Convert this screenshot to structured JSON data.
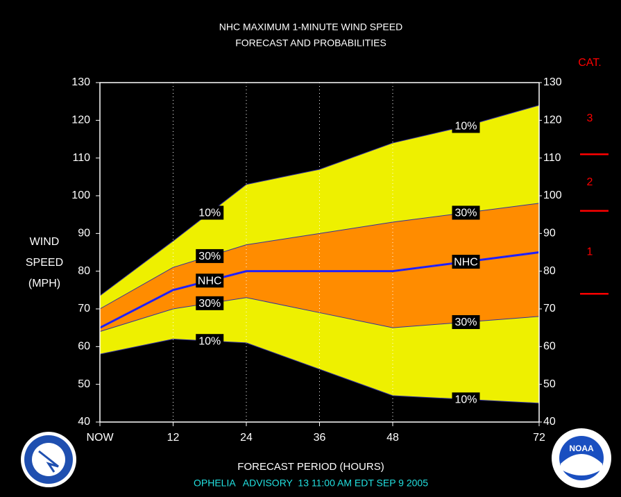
{
  "chart_data": {
    "type": "band",
    "title": [
      "NHC MAXIMUM 1-MINUTE WIND SPEED",
      "FORECAST AND PROBABILITIES"
    ],
    "y_label": [
      "WIND",
      "SPEED",
      "(MPH)"
    ],
    "x_label": "FORECAST PERIOD (HOURS)",
    "footer": "OPHELIA   ADVISORY  13 11:00 AM EDT SEP 9 2005",
    "x": [
      0,
      12,
      24,
      36,
      48,
      60,
      72
    ],
    "xlim": [
      0,
      72
    ],
    "xticks": [
      {
        "value": 0,
        "label": "NOW"
      },
      12,
      24,
      36,
      48,
      72
    ],
    "ylim": [
      40,
      130
    ],
    "yticks": [
      40,
      50,
      60,
      70,
      80,
      90,
      100,
      110,
      120,
      130
    ],
    "y2lim": [
      40,
      130
    ],
    "y2ticks": [
      40,
      50,
      60,
      70,
      80,
      90,
      100,
      110,
      120,
      130
    ],
    "grid": true,
    "series": [
      {
        "name": "10%",
        "color": "#eef000",
        "values": [
          73.5,
          88,
          103,
          107,
          114,
          118.5,
          124
        ]
      },
      {
        "name": "30%",
        "color": "#ff8c00",
        "values": [
          70,
          81,
          87,
          90,
          93,
          95.5,
          98
        ]
      },
      {
        "name": "NHC",
        "color": "#2020ff",
        "values": [
          65,
          75,
          80,
          80,
          80,
          82.5,
          85
        ]
      },
      {
        "name": "30%",
        "color": "#ff8c00",
        "values": [
          64,
          70,
          73,
          69,
          65,
          66.5,
          68
        ]
      },
      {
        "name": "10%",
        "color": "#eef000",
        "values": [
          58,
          62,
          61,
          54,
          47,
          46,
          45
        ]
      }
    ],
    "category_scale": {
      "title": "CAT.",
      "color": "#ff0000",
      "categories": [
        "1",
        "2",
        "3"
      ],
      "thresholds": [
        74,
        96,
        111
      ]
    }
  },
  "logos": {
    "right": "NOAA"
  }
}
